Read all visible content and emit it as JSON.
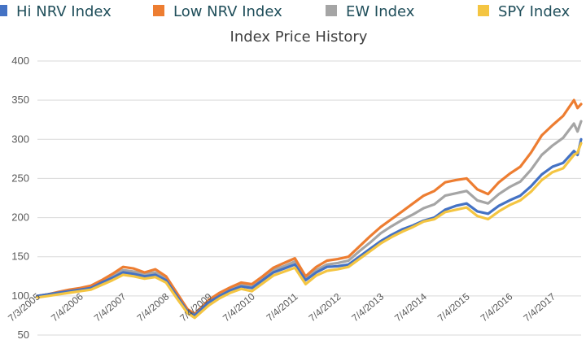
{
  "chart_data": {
    "type": "line",
    "title": "Index Price History",
    "ylim": [
      50,
      400
    ],
    "yticks": [
      50,
      100,
      150,
      200,
      250,
      300,
      350,
      400
    ],
    "grid": true,
    "legend_placement": "top",
    "xtick_labels": [
      "7/3/2005",
      "7/4/2006",
      "7/4/2007",
      "7/4/2008",
      "7/4/2009",
      "7/4/2010",
      "7/4/2011",
      "7/4/2012",
      "7/4/2013",
      "7/4/2014",
      "7/4/2015",
      "7/4/2016",
      "7/4/2017"
    ],
    "x_end_date": "3/2018",
    "x": [
      "7/2005",
      "10/2005",
      "1/2006",
      "4/2006",
      "7/2006",
      "10/2006",
      "1/2007",
      "4/2007",
      "7/2007",
      "10/2007",
      "1/2008",
      "4/2008",
      "7/2008",
      "10/2008",
      "1/2009",
      "3/2009",
      "7/2009",
      "10/2009",
      "1/2010",
      "4/2010",
      "7/2010",
      "10/2010",
      "1/2011",
      "4/2011",
      "7/2011",
      "10/2011",
      "1/2012",
      "4/2012",
      "7/2012",
      "10/2012",
      "1/2013",
      "4/2013",
      "7/2013",
      "10/2013",
      "1/2014",
      "4/2014",
      "7/2014",
      "10/2014",
      "1/2015",
      "4/2015",
      "7/2015",
      "10/2015",
      "1/2016",
      "4/2016",
      "7/2016",
      "10/2016",
      "1/2017",
      "4/2017",
      "7/2017",
      "10/2017",
      "1/2018",
      "2/2018",
      "3/2018"
    ],
    "series": [
      {
        "name": "Hi NRV Index",
        "color": "#4472c4",
        "values": [
          100,
          102,
          104,
          106,
          108,
          110,
          117,
          123,
          130,
          128,
          125,
          127,
          120,
          100,
          80,
          75,
          92,
          100,
          107,
          112,
          110,
          120,
          130,
          135,
          140,
          120,
          130,
          137,
          138,
          140,
          150,
          160,
          170,
          178,
          185,
          190,
          196,
          200,
          210,
          215,
          218,
          208,
          205,
          215,
          222,
          228,
          240,
          255,
          265,
          270,
          285,
          280,
          300
        ]
      },
      {
        "name": "Low NRV Index",
        "color": "#ed7d31",
        "values": [
          100,
          102,
          105,
          108,
          110,
          113,
          120,
          128,
          137,
          135,
          130,
          134,
          125,
          104,
          83,
          77,
          95,
          104,
          111,
          117,
          115,
          125,
          136,
          142,
          148,
          125,
          137,
          145,
          147,
          150,
          163,
          176,
          188,
          198,
          208,
          218,
          228,
          234,
          245,
          248,
          250,
          236,
          230,
          245,
          256,
          265,
          283,
          305,
          318,
          330,
          350,
          340,
          345
        ]
      },
      {
        "name": "EW Index",
        "color": "#a5a5a5",
        "values": [
          100,
          102,
          104,
          107,
          109,
          112,
          118,
          125,
          133,
          131,
          128,
          130,
          122,
          102,
          81,
          76,
          93,
          102,
          109,
          114,
          112,
          122,
          133,
          138,
          144,
          122,
          133,
          140,
          142,
          145,
          157,
          168,
          180,
          189,
          197,
          204,
          212,
          217,
          228,
          231,
          234,
          222,
          218,
          230,
          239,
          246,
          261,
          280,
          292,
          302,
          320,
          310,
          323
        ]
      },
      {
        "name": "SPY Index",
        "color": "#f4c542",
        "values": [
          98,
          100,
          102,
          104,
          106,
          108,
          114,
          120,
          127,
          125,
          122,
          124,
          117,
          97,
          78,
          72,
          88,
          97,
          104,
          109,
          106,
          116,
          126,
          131,
          136,
          115,
          126,
          132,
          134,
          137,
          147,
          157,
          167,
          175,
          182,
          188,
          195,
          198,
          207,
          210,
          213,
          202,
          198,
          208,
          216,
          222,
          233,
          248,
          258,
          263,
          280,
          283,
          295
        ]
      }
    ]
  }
}
